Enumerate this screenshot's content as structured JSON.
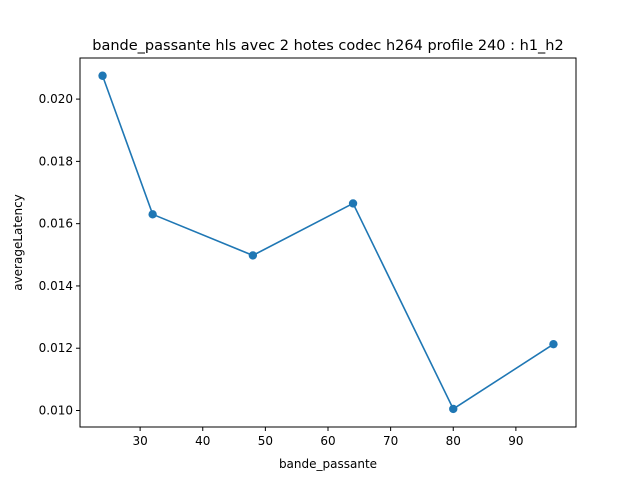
{
  "chart_data": {
    "type": "line",
    "title": "bande_passante hls avec 2 hotes codec h264 profile 240 : h1_h2",
    "xlabel": "bande_passante",
    "ylabel": "averageLatency",
    "xlim": [
      20.4,
      99.6
    ],
    "ylim": [
      0.00947,
      0.02132
    ],
    "xticks": [
      30,
      40,
      50,
      60,
      70,
      80,
      90
    ],
    "yticks": [
      0.01,
      0.012,
      0.014,
      0.016,
      0.018,
      0.02
    ],
    "xtick_labels": [
      "30",
      "40",
      "50",
      "60",
      "70",
      "80",
      "90"
    ],
    "ytick_labels": [
      "0.010",
      "0.012",
      "0.014",
      "0.016",
      "0.018",
      "0.020"
    ],
    "grid": false,
    "series": [
      {
        "color": "#1f77b4",
        "marker": "circle",
        "x": [
          24,
          32,
          48,
          64,
          80,
          96
        ],
        "y": [
          0.02075,
          0.0163,
          0.01498,
          0.01665,
          0.01005,
          0.01213
        ]
      }
    ]
  }
}
